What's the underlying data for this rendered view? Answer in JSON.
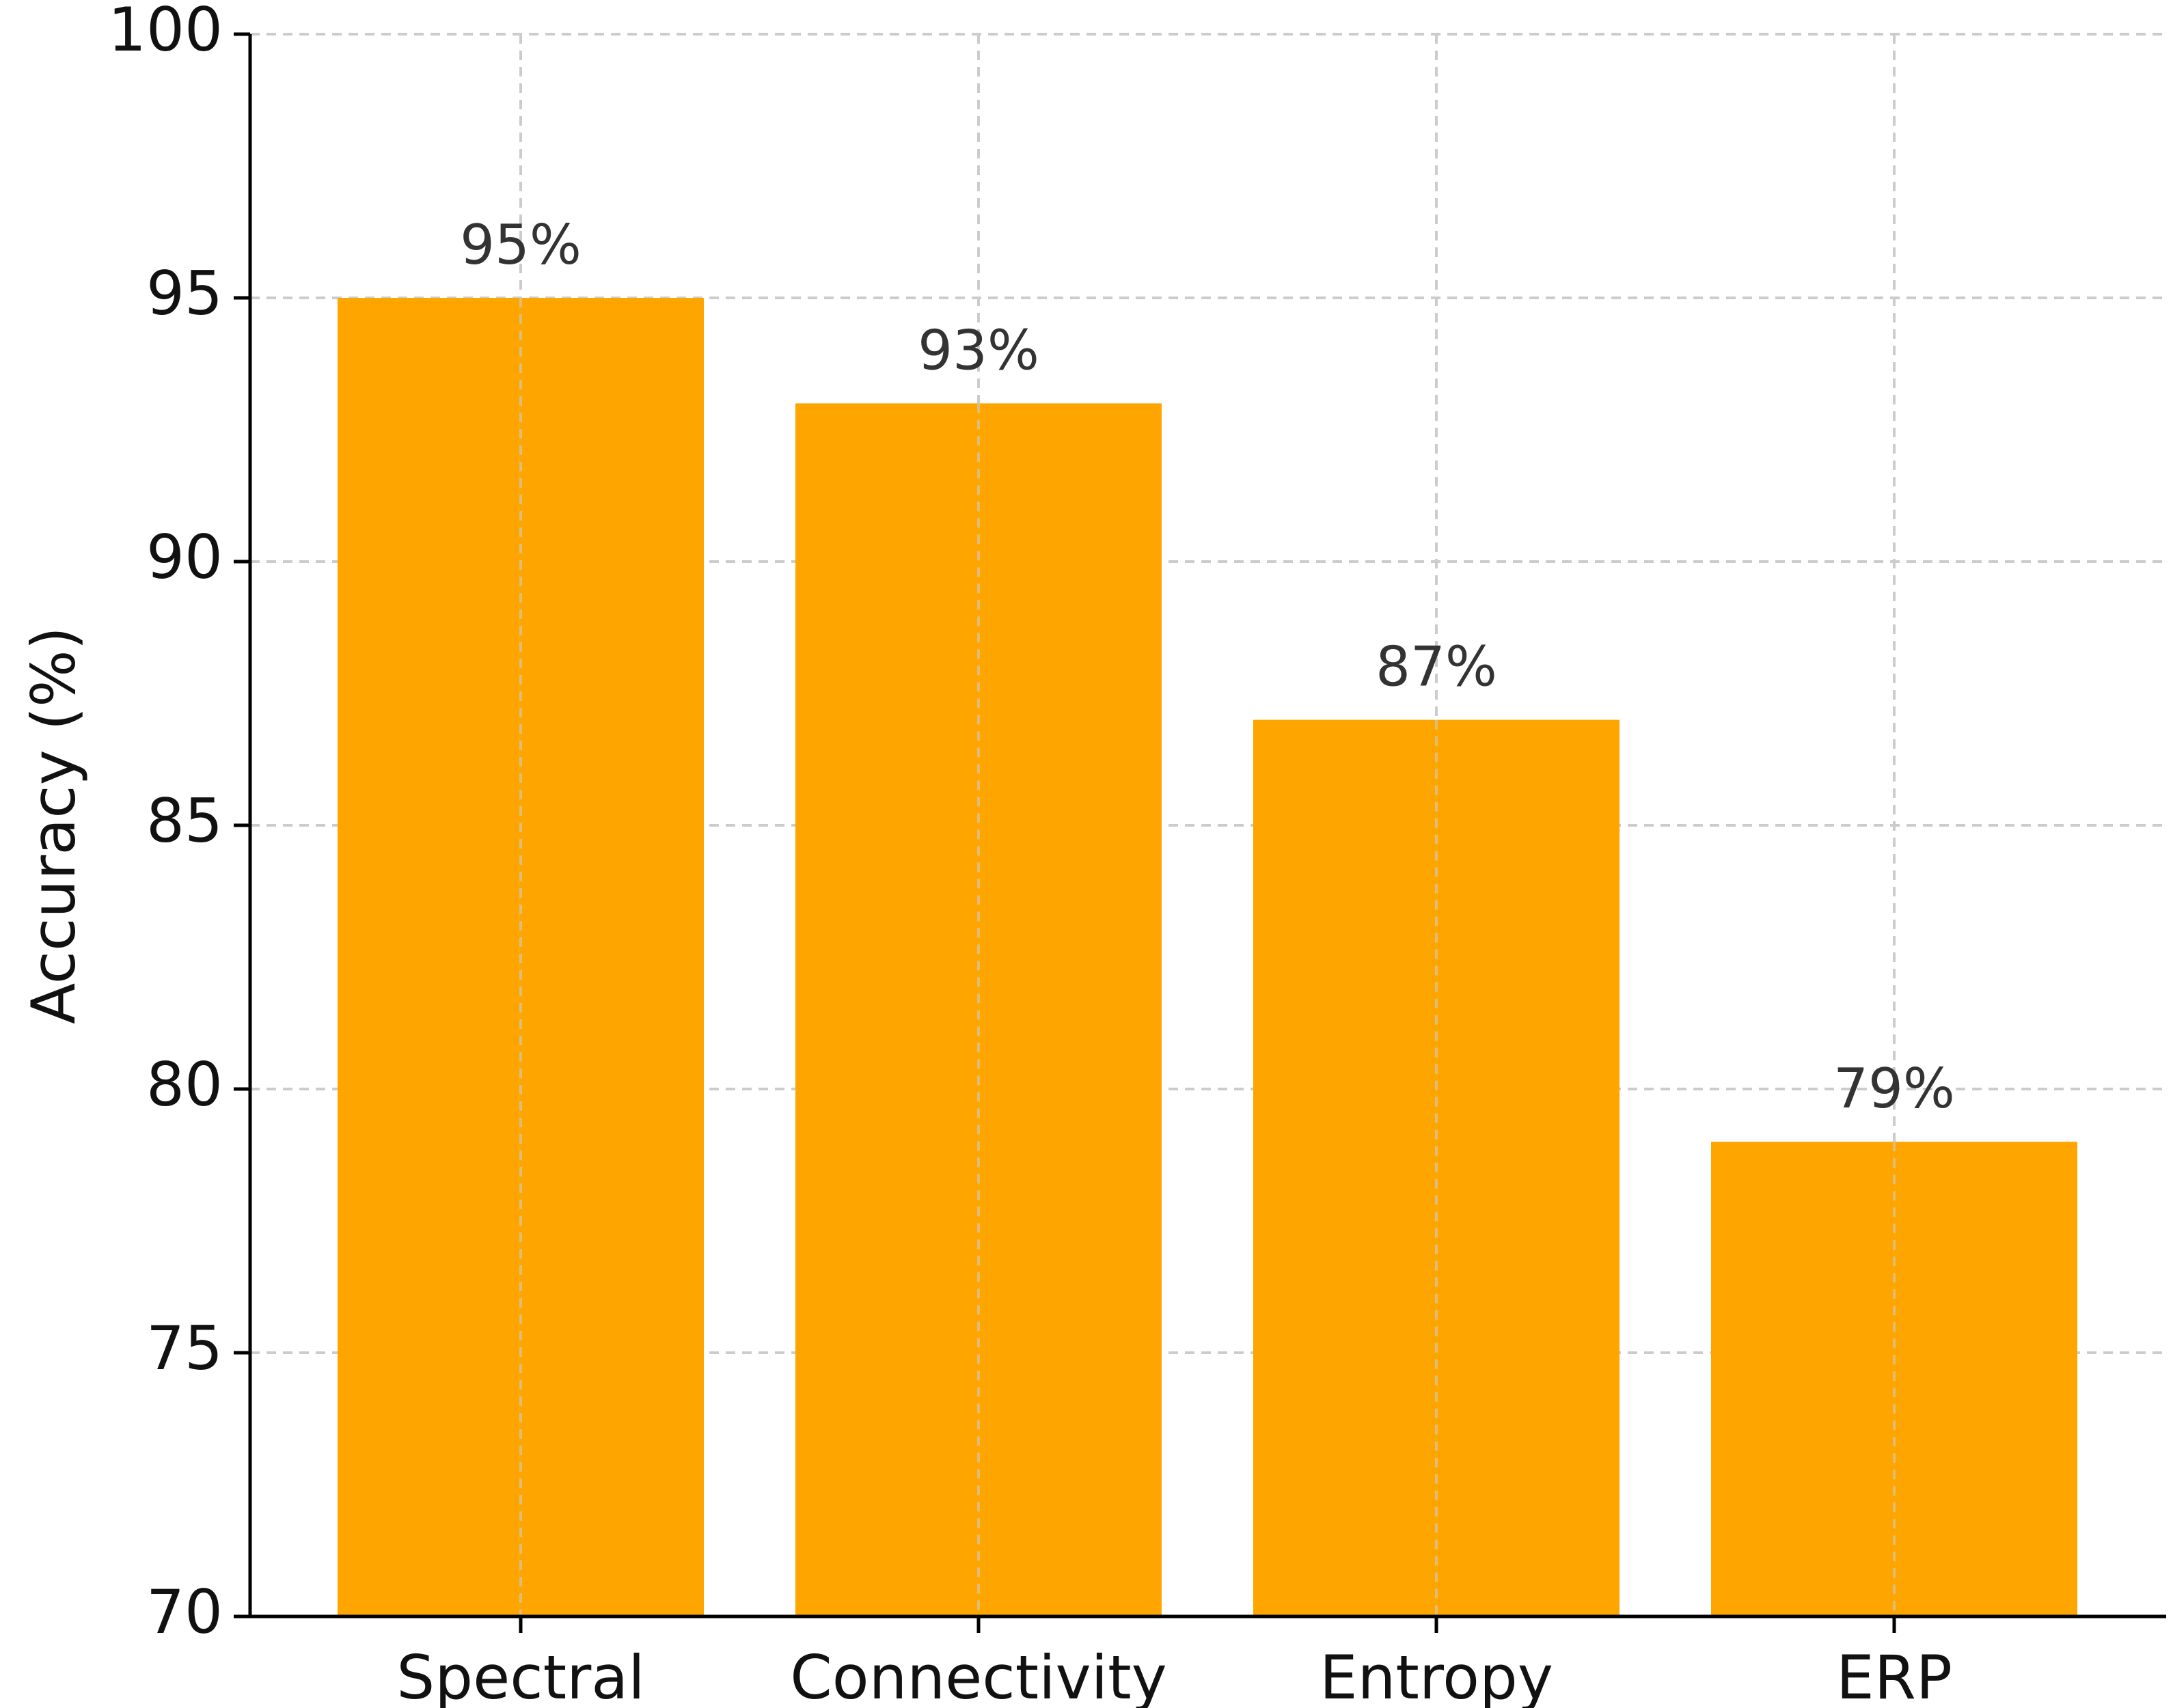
{
  "chart_data": {
    "type": "bar",
    "categories": [
      "Spectral",
      "Connectivity",
      "Entropy",
      "ERP"
    ],
    "values": [
      95,
      93,
      87,
      79
    ],
    "value_labels": [
      "95%",
      "93%",
      "87%",
      "79%"
    ],
    "title": "",
    "xlabel": "",
    "ylabel": "Accuracy (%)",
    "ylim": [
      70,
      100
    ],
    "yticks": [
      70,
      75,
      80,
      85,
      90,
      95,
      100
    ],
    "grid": true,
    "bar_color": "#FFA500"
  }
}
